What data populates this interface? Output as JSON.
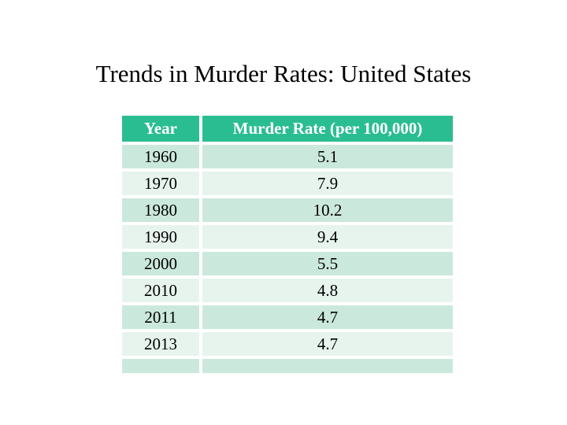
{
  "slide": {
    "title": "Trends in Murder Rates: United States"
  },
  "table": {
    "headers": [
      "Year",
      "Murder Rate (per 100,000)"
    ],
    "rows": [
      {
        "year": "1960",
        "rate": "5.1"
      },
      {
        "year": "1970",
        "rate": "7.9"
      },
      {
        "year": "1980",
        "rate": "10.2"
      },
      {
        "year": "1990",
        "rate": "9.4"
      },
      {
        "year": "2000",
        "rate": "5.5"
      },
      {
        "year": "2010",
        "rate": "4.8"
      },
      {
        "year": "2011",
        "rate": "4.7"
      },
      {
        "year": "2013",
        "rate": "4.7"
      }
    ],
    "colors": {
      "header_bg": "#2bbd92",
      "header_text": "#ffffff",
      "row_band_dark": "#cbe8dc",
      "row_band_light": "#e7f4ee",
      "cell_text": "#000000",
      "title_text": "#000000",
      "background": "#ffffff"
    }
  },
  "chart_data": {
    "type": "table",
    "title": "Trends in Murder Rates: United States",
    "columns": [
      "Year",
      "Murder Rate (per 100,000)"
    ],
    "x": [
      1960,
      1970,
      1980,
      1990,
      2000,
      2010,
      2011,
      2013
    ],
    "values": [
      5.1,
      7.9,
      10.2,
      9.4,
      5.5,
      4.8,
      4.7,
      4.7
    ]
  }
}
